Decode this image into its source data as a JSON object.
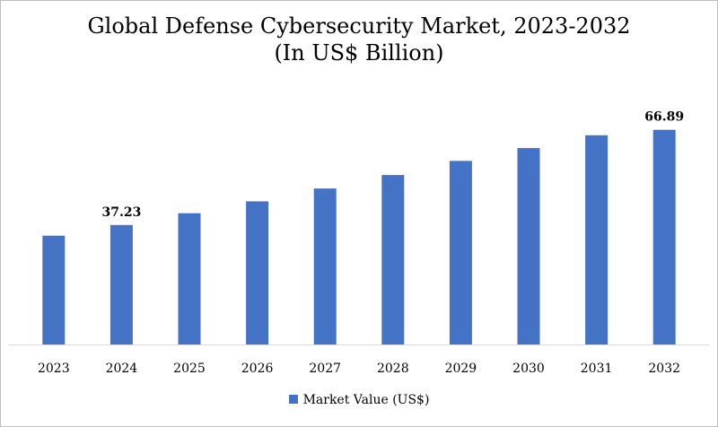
{
  "chart_data": {
    "type": "bar",
    "title": "Global Defense Cybersecurity Market, 2023-2032",
    "subtitle": "(In US$ Billion)",
    "categories": [
      "2023",
      "2024",
      "2025",
      "2026",
      "2027",
      "2028",
      "2029",
      "2030",
      "2031",
      "2032"
    ],
    "series": [
      {
        "name": "Market Value (US$)",
        "values": [
          33.9,
          37.23,
          40.9,
          44.6,
          48.6,
          52.8,
          57.2,
          61.2,
          65.2,
          66.89
        ]
      }
    ],
    "data_labels": [
      {
        "category": "2024",
        "text": "37.23"
      },
      {
        "category": "2032",
        "text": "66.89"
      }
    ],
    "xlabel": "",
    "ylabel": "",
    "ylim": [
      0,
      71
    ],
    "grid": false,
    "legend_position": "bottom",
    "bar_color": "#4472C4"
  }
}
